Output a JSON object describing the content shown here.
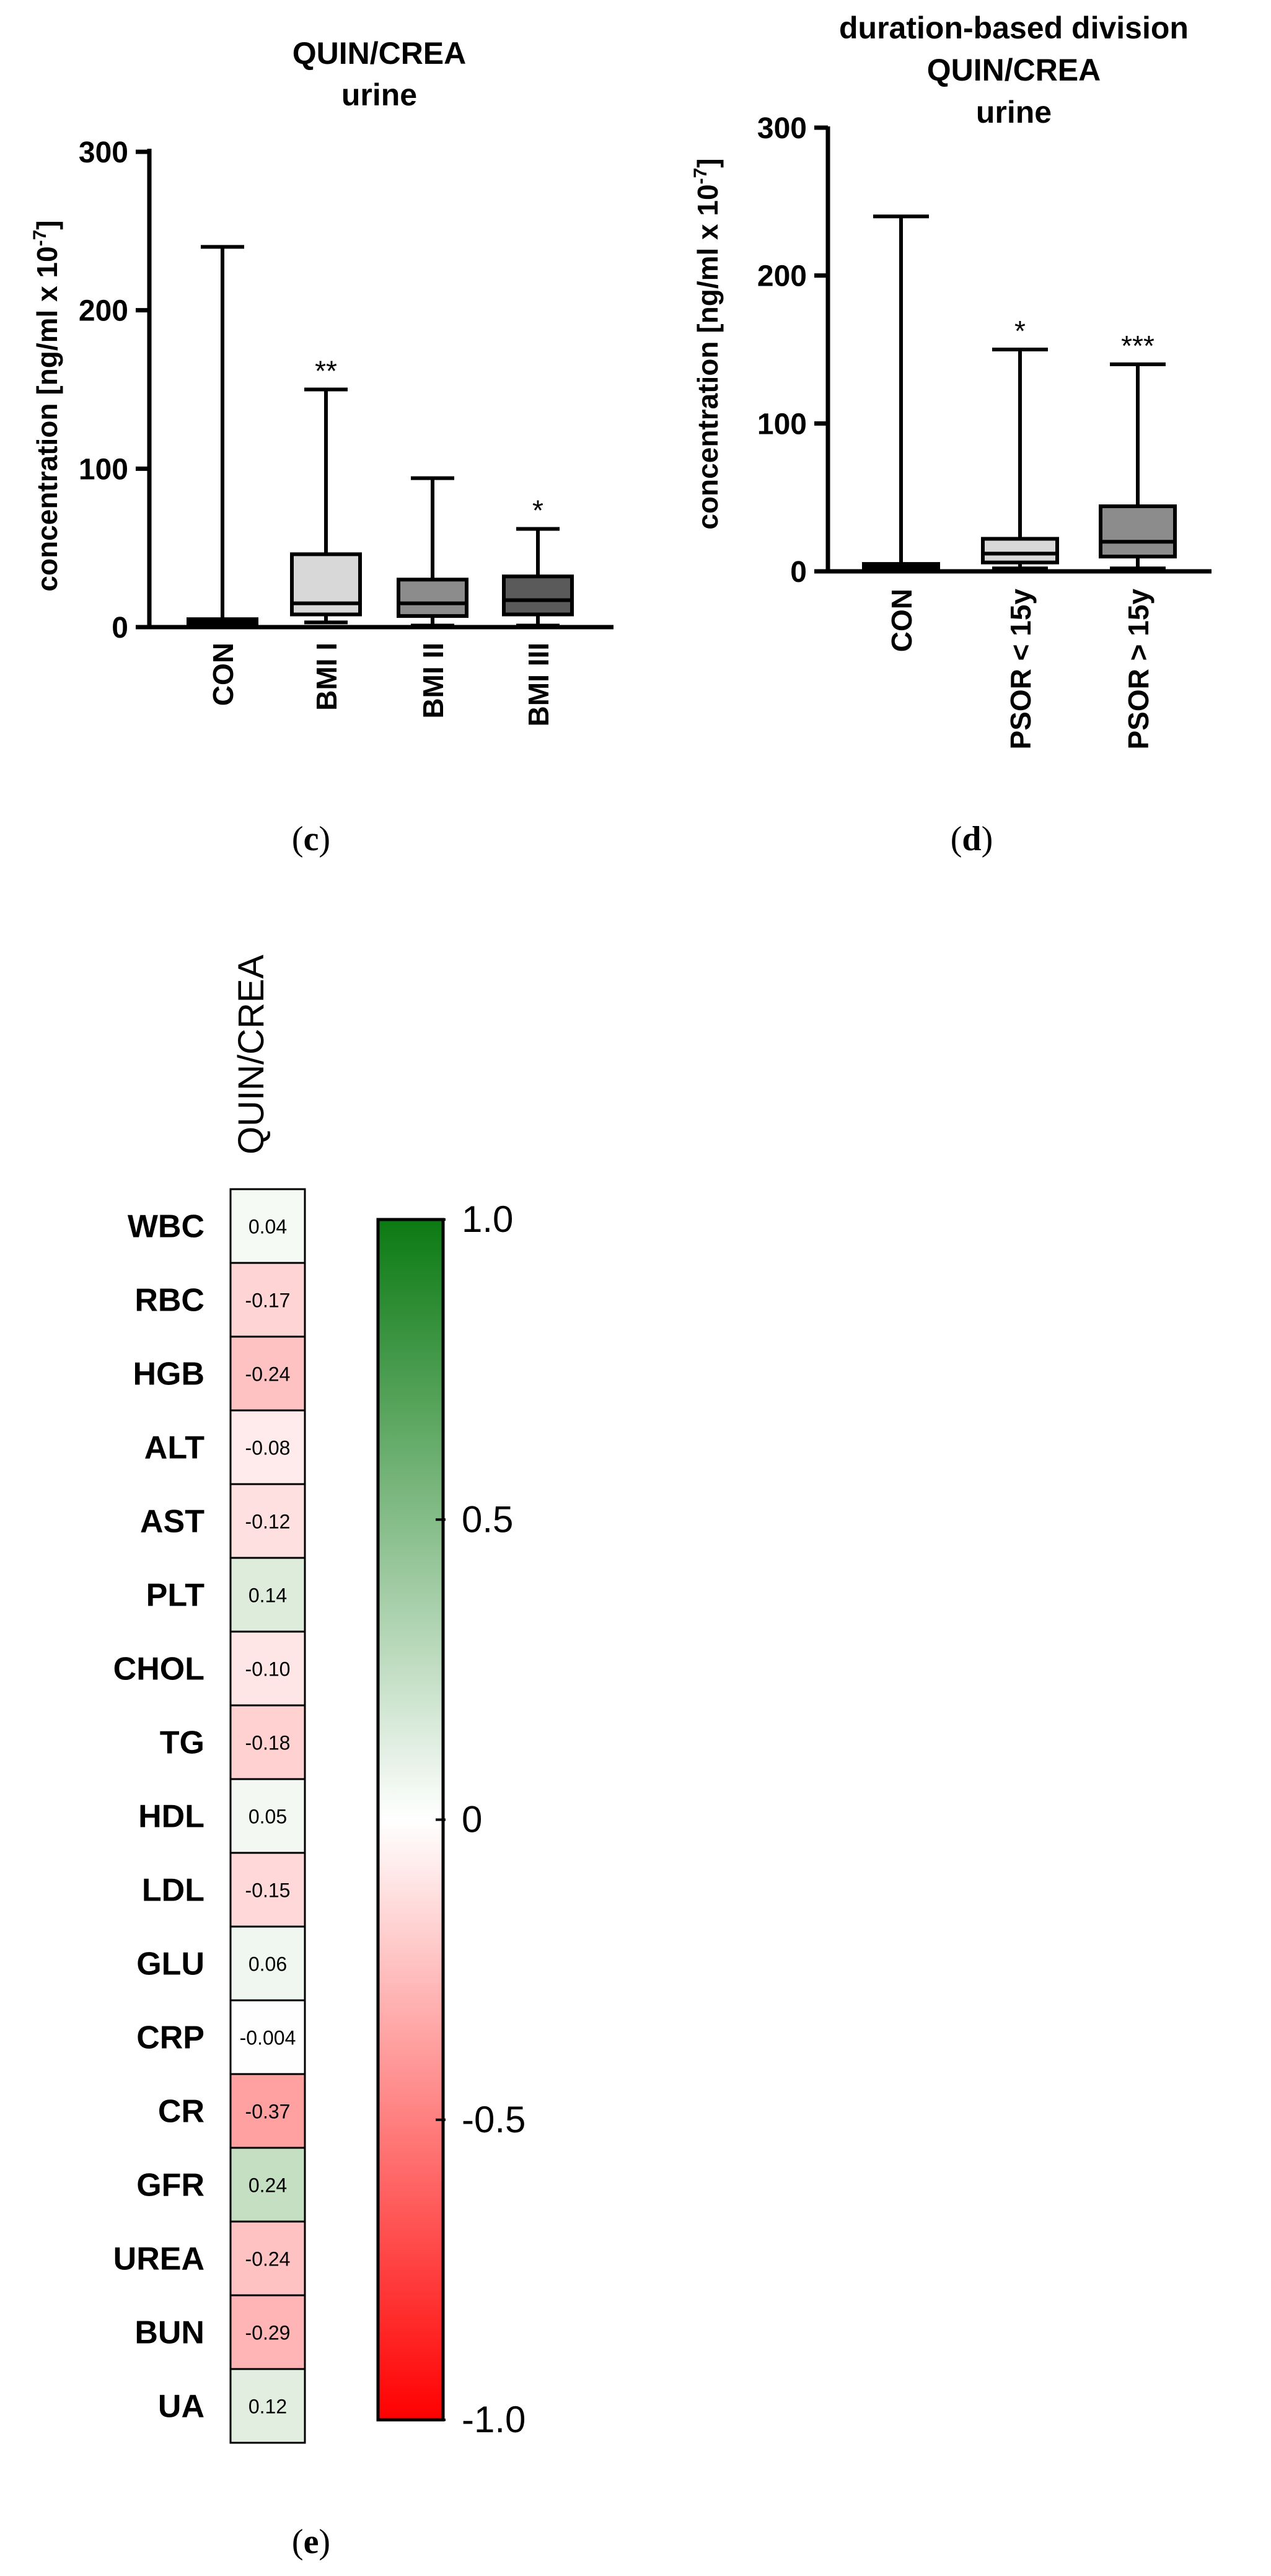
{
  "chart_data": [
    {
      "panel": "(c)",
      "type": "box",
      "title_lines": [
        "QUIN/CREA",
        "urine"
      ],
      "ylabel": "concentration [ng/ml x 10",
      "ylabel_exp": "-7",
      "ylabel_close": "]",
      "ylim": [
        0,
        300
      ],
      "yticks": [
        0,
        100,
        200,
        300
      ],
      "categories": [
        "CON",
        "BMI I",
        "BMI II",
        "BMI III"
      ],
      "boxes": [
        {
          "category": "CON",
          "min": 0,
          "q1": 1,
          "median": 3,
          "q3": 5,
          "max": 240,
          "fill": "#000000",
          "sig": ""
        },
        {
          "category": "BMI I",
          "min": 3,
          "q1": 8,
          "median": 15,
          "q3": 46,
          "max": 150,
          "fill": "#d8d8d8",
          "sig": "**"
        },
        {
          "category": "BMI II",
          "min": 1,
          "q1": 7,
          "median": 15,
          "q3": 30,
          "max": 94,
          "fill": "#8c8c8c",
          "sig": ""
        },
        {
          "category": "BMI III",
          "min": 1,
          "q1": 8,
          "median": 17,
          "q3": 32,
          "max": 62,
          "fill": "#5a5a5a",
          "sig": "*"
        }
      ]
    },
    {
      "panel": "(d)",
      "type": "box",
      "title_lines": [
        "duration-based division",
        "QUIN/CREA",
        "urine"
      ],
      "ylabel": "concentration [ng/ml x 10",
      "ylabel_exp": "-7",
      "ylabel_close": "]",
      "ylim": [
        0,
        300
      ],
      "yticks": [
        0,
        100,
        200,
        300
      ],
      "categories": [
        "CON",
        "PSOR < 15y",
        "PSOR > 15y"
      ],
      "boxes": [
        {
          "category": "CON",
          "min": 0,
          "q1": 1,
          "median": 3,
          "q3": 5,
          "max": 240,
          "fill": "#000000",
          "sig": ""
        },
        {
          "category": "PSOR < 15y",
          "min": 2,
          "q1": 6,
          "median": 12,
          "q3": 22,
          "max": 150,
          "fill": "#d8d8d8",
          "sig": "*"
        },
        {
          "category": "PSOR > 15y",
          "min": 2,
          "q1": 10,
          "median": 20,
          "q3": 44,
          "max": 140,
          "fill": "#8c8c8c",
          "sig": "***"
        }
      ]
    },
    {
      "panel": "(e)",
      "type": "heatmap",
      "column_label": "QUIN/CREA",
      "rows": [
        "WBC",
        "RBC",
        "HGB",
        "ALT",
        "AST",
        "PLT",
        "CHOL",
        "TG",
        "HDL",
        "LDL",
        "GLU",
        "CRP",
        "CR",
        "GFR",
        "UREA",
        "BUN",
        "UA"
      ],
      "values": [
        0.04,
        -0.17,
        -0.24,
        -0.08,
        -0.12,
        0.14,
        -0.1,
        -0.18,
        0.05,
        -0.15,
        0.06,
        -0.004,
        -0.37,
        0.24,
        -0.24,
        -0.29,
        0.12
      ],
      "value_labels": [
        "0.04",
        "-0.17",
        "-0.24",
        "-0.08",
        "-0.12",
        "0.14",
        "-0.10",
        "-0.18",
        "0.05",
        "-0.15",
        "0.06",
        "-0.004",
        "-0.37",
        "0.24",
        "-0.24",
        "-0.29",
        "0.12"
      ],
      "colorbar": {
        "range": [
          -1.0,
          1.0
        ],
        "tick_labels": [
          "1.0",
          "0.5",
          "0",
          "-0.5",
          "-1.0"
        ],
        "tick_values": [
          1.0,
          0.5,
          0,
          -0.5,
          -1.0
        ],
        "positive_color": "#0b7a12",
        "negative_color": "#ff0000",
        "neutral_color": "#ffffff"
      }
    }
  ]
}
